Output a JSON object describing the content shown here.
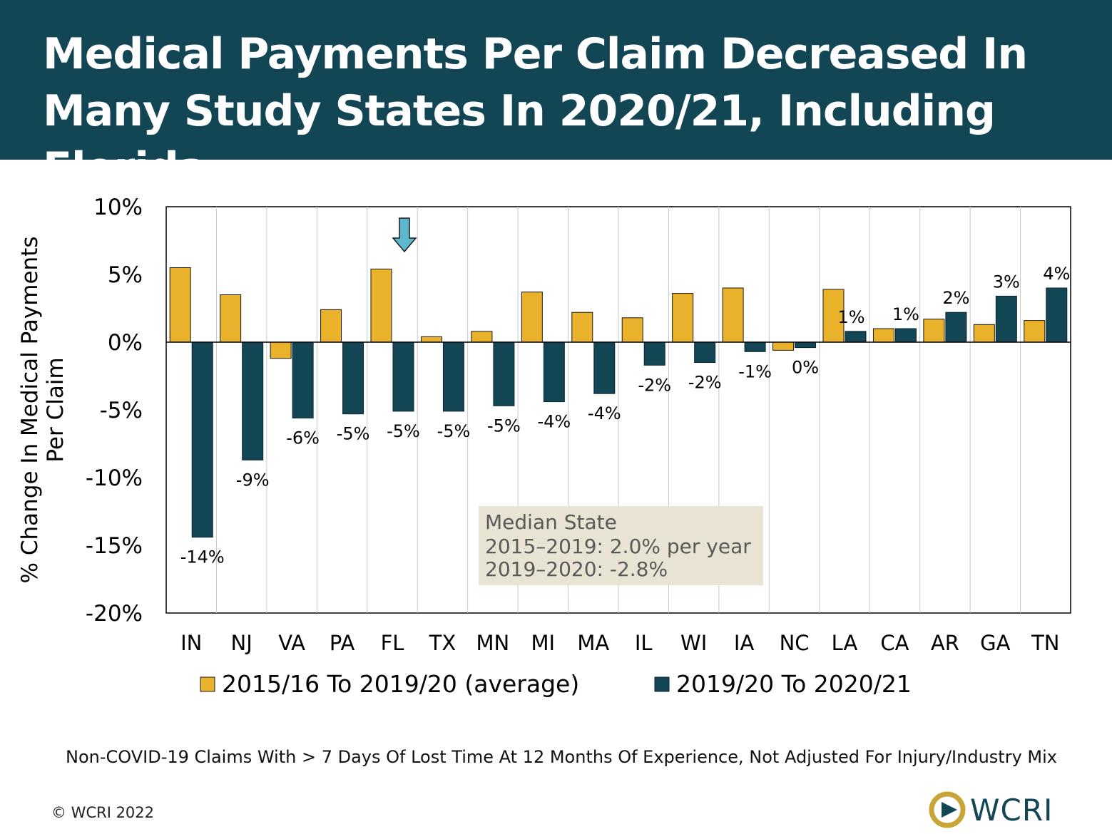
{
  "header": {
    "title": "Medical Payments Per Claim Decreased In Many Study States In 2020/21, Including Florida"
  },
  "chart_data": {
    "type": "bar",
    "title": "",
    "ylabel": "% Change In Medical Payments Per Claim",
    "ylabel_lines": [
      "% Change In Medical Payments",
      "Per Claim"
    ],
    "ylim": [
      -20,
      10
    ],
    "yticks": [
      10,
      5,
      0,
      -5,
      -10,
      -15,
      -20
    ],
    "ytick_labels": [
      "10%",
      "5%",
      "0%",
      "-5%",
      "-10%",
      "-15%",
      "-20%"
    ],
    "grid": "vertical",
    "categories": [
      "IN",
      "NJ",
      "VA",
      "PA",
      "FL",
      "TX",
      "MN",
      "MI",
      "MA",
      "IL",
      "WI",
      "IA",
      "NC",
      "LA",
      "CA",
      "AR",
      "GA",
      "TN"
    ],
    "series": [
      {
        "name": "2015/16 To 2019/20 (average)",
        "color": "#EAB12A",
        "values": [
          5.5,
          3.5,
          -1.2,
          2.4,
          5.4,
          0.4,
          0.8,
          3.7,
          2.2,
          1.8,
          3.6,
          4.0,
          -0.6,
          3.9,
          1.0,
          1.7,
          1.3,
          1.6
        ]
      },
      {
        "name": "2019/20 To 2020/21",
        "color": "#134654",
        "values": [
          -14.4,
          -8.7,
          -5.6,
          -5.3,
          -5.1,
          -5.1,
          -4.7,
          -4.4,
          -3.8,
          -1.7,
          -1.5,
          -0.7,
          -0.4,
          0.8,
          1.0,
          2.2,
          3.4,
          4.0
        ],
        "labels": [
          "-14%",
          "-9%",
          "-6%",
          "-5%",
          "-5%",
          "-5%",
          "-5%",
          "-4%",
          "-4%",
          "-2%",
          "-2%",
          "-1%",
          "0%",
          "1%",
          "1%",
          "2%",
          "3%",
          "4%"
        ]
      }
    ],
    "legend_position": "bottom",
    "highlight": {
      "category": "FL",
      "marker": "down-arrow",
      "color": "#5BB8CF"
    },
    "annotation": {
      "title": "Median State",
      "lines": [
        "2015–2019:  2.0% per year",
        "2019–2020: -2.8%"
      ]
    }
  },
  "footnote": "Non-COVID-19 Claims With > 7 Days Of Lost Time At 12 Months Of Experience, Not Adjusted For Injury/Industry Mix",
  "copyright": "© WCRI 2022",
  "logo": {
    "text": "WCRI",
    "colors": [
      "#C8A436",
      "#134654"
    ]
  }
}
